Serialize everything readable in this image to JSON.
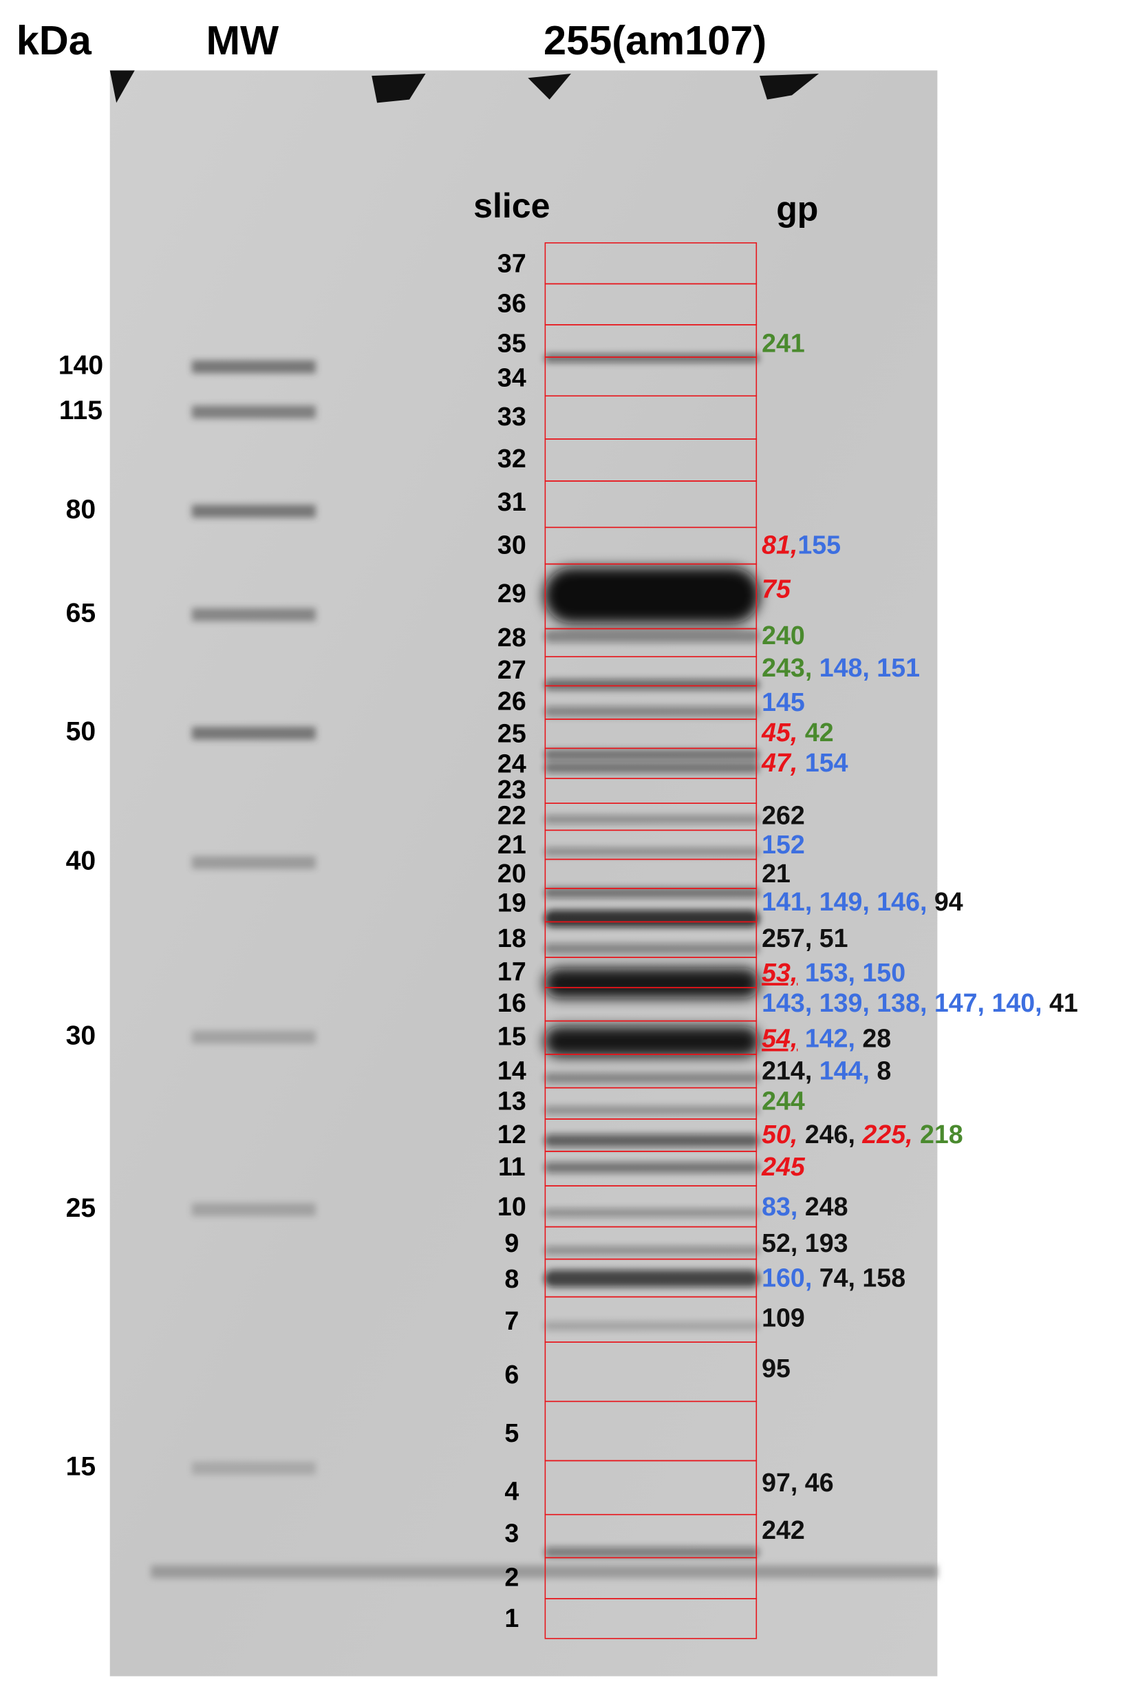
{
  "header": {
    "unit": "kDa",
    "marker_lane": "MW",
    "sample_lane": "255(am107)"
  },
  "markers": [
    140,
    115,
    80,
    65,
    50,
    40,
    30,
    25,
    15
  ],
  "column_headers": {
    "slice": "slice",
    "gp": "gp"
  },
  "slices": [
    {
      "label": 37,
      "gp": []
    },
    {
      "label": 36,
      "gp": []
    },
    {
      "label": 35,
      "gp": [
        {
          "text": "241",
          "color": "#4a8a2e"
        }
      ]
    },
    {
      "label": 34,
      "gp": []
    },
    {
      "label": 33,
      "gp": []
    },
    {
      "label": 32,
      "gp": []
    },
    {
      "label": 31,
      "gp": []
    },
    {
      "label": 30,
      "gp": [
        {
          "text": "81,",
          "color": "#e8141a",
          "emphasis": "italic"
        },
        {
          "text": "155",
          "color": "#3d6fe0"
        }
      ]
    },
    {
      "label": 29,
      "gp": [
        {
          "text": "75",
          "color": "#e8141a",
          "emphasis": "italic"
        }
      ]
    },
    {
      "label": 28,
      "gp": [
        {
          "text": "240",
          "color": "#4a8a2e"
        }
      ]
    },
    {
      "label": 27,
      "gp": [
        {
          "text": "243, ",
          "color": "#4a8a2e"
        },
        {
          "text": "148, 151",
          "color": "#3d6fe0"
        }
      ]
    },
    {
      "label": 26,
      "gp": [
        {
          "text": "145",
          "color": "#3d6fe0"
        }
      ]
    },
    {
      "label": 25,
      "gp": [
        {
          "text": "45, ",
          "color": "#e8141a",
          "emphasis": "italic"
        },
        {
          "text": "42",
          "color": "#4a8a2e"
        }
      ]
    },
    {
      "label": 24,
      "gp": [
        {
          "text": "47, ",
          "color": "#e8141a",
          "emphasis": "italic"
        },
        {
          "text": "154",
          "color": "#3d6fe0"
        }
      ]
    },
    {
      "label": 23,
      "gp": []
    },
    {
      "label": 22,
      "gp": [
        {
          "text": "262",
          "color": "#111111"
        }
      ]
    },
    {
      "label": 21,
      "gp": [
        {
          "text": "152",
          "color": "#3d6fe0"
        }
      ]
    },
    {
      "label": 20,
      "gp": [
        {
          "text": "21",
          "color": "#111111"
        }
      ]
    },
    {
      "label": 19,
      "gp": [
        {
          "text": "141, 149, 146, ",
          "color": "#3d6fe0"
        },
        {
          "text": "94",
          "color": "#111111"
        }
      ]
    },
    {
      "label": 18,
      "gp": [
        {
          "text": "257, 51",
          "color": "#111111"
        }
      ]
    },
    {
      "label": 17,
      "gp": [
        {
          "text": "53,",
          "color": "#e8141a",
          "emphasis": "italic-underline"
        },
        {
          "text": " 153, 150",
          "color": "#3d6fe0"
        }
      ]
    },
    {
      "label": 16,
      "gp": [
        {
          "text": "143, 139, 138, 147, 140, ",
          "color": "#3d6fe0"
        },
        {
          "text": "41",
          "color": "#111111"
        }
      ]
    },
    {
      "label": 15,
      "gp": [
        {
          "text": "54,",
          "color": "#e8141a",
          "emphasis": "italic-underline"
        },
        {
          "text": " 142, ",
          "color": "#3d6fe0"
        },
        {
          "text": "28",
          "color": "#111111"
        }
      ]
    },
    {
      "label": 14,
      "gp": [
        {
          "text": "214, ",
          "color": "#111111"
        },
        {
          "text": "144, ",
          "color": "#3d6fe0"
        },
        {
          "text": "8",
          "color": "#111111"
        }
      ]
    },
    {
      "label": 13,
      "gp": [
        {
          "text": "244",
          "color": "#4a8a2e"
        }
      ]
    },
    {
      "label": 12,
      "gp": [
        {
          "text": "50, ",
          "color": "#e8141a",
          "emphasis": "italic"
        },
        {
          "text": "246, ",
          "color": "#111111"
        },
        {
          "text": "225, ",
          "color": "#e8141a",
          "emphasis": "italic"
        },
        {
          "text": "218",
          "color": "#4a8a2e"
        }
      ]
    },
    {
      "label": 11,
      "gp": [
        {
          "text": "245",
          "color": "#e8141a",
          "emphasis": "italic"
        }
      ]
    },
    {
      "label": 10,
      "gp": [
        {
          "text": "83, ",
          "color": "#3d6fe0"
        },
        {
          "text": "248",
          "color": "#111111"
        }
      ]
    },
    {
      "label": 9,
      "gp": [
        {
          "text": "52, 193",
          "color": "#111111"
        }
      ]
    },
    {
      "label": 8,
      "gp": [
        {
          "text": "160, ",
          "color": "#3d6fe0"
        },
        {
          "text": "74, 158",
          "color": "#111111"
        }
      ]
    },
    {
      "label": 7,
      "gp": [
        {
          "text": "109",
          "color": "#111111"
        }
      ]
    },
    {
      "label": 6,
      "gp": [
        {
          "text": "95",
          "color": "#111111"
        }
      ]
    },
    {
      "label": 5,
      "gp": []
    },
    {
      "label": 4,
      "gp": [
        {
          "text": "97, 46",
          "color": "#111111"
        }
      ]
    },
    {
      "label": 3,
      "gp": [
        {
          "text": "242",
          "color": "#111111"
        }
      ]
    },
    {
      "label": 2,
      "gp": []
    },
    {
      "label": 1,
      "gp": []
    }
  ]
}
